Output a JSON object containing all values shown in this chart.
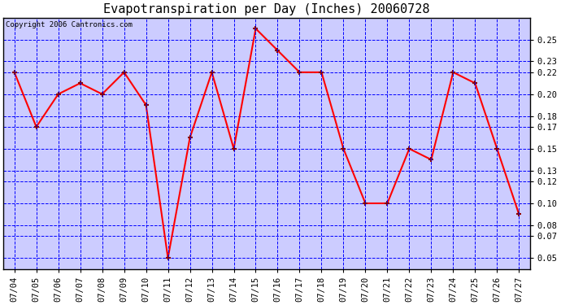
{
  "title": "Evapotranspiration per Day (Inches) 20060728",
  "copyright": "Copyright 2006 Cantronics.com",
  "dates": [
    "07/04",
    "07/05",
    "07/06",
    "07/07",
    "07/08",
    "07/09",
    "07/10",
    "07/11",
    "07/12",
    "07/13",
    "07/14",
    "07/15",
    "07/16",
    "07/17",
    "07/18",
    "07/19",
    "07/20",
    "07/21",
    "07/22",
    "07/23",
    "07/24",
    "07/25",
    "07/26",
    "07/27"
  ],
  "values": [
    0.22,
    0.17,
    0.2,
    0.21,
    0.2,
    0.22,
    0.19,
    0.05,
    0.16,
    0.22,
    0.15,
    0.26,
    0.24,
    0.22,
    0.22,
    0.15,
    0.1,
    0.1,
    0.15,
    0.14,
    0.22,
    0.21,
    0.15,
    0.09
  ],
  "ylim": [
    0.04,
    0.27
  ],
  "yticks": [
    0.05,
    0.07,
    0.08,
    0.1,
    0.12,
    0.13,
    0.15,
    0.17,
    0.18,
    0.2,
    0.22,
    0.23,
    0.25
  ],
  "line_color": "red",
  "marker_color": "darkred",
  "fig_bg_color": "#ffffff",
  "plot_bg_color": "#ccccff",
  "grid_color": "blue",
  "border_color": "black",
  "title_fontsize": 11,
  "copyright_fontsize": 6.5,
  "tick_fontsize": 7.5,
  "marker_size": 5,
  "linewidth": 1.5
}
